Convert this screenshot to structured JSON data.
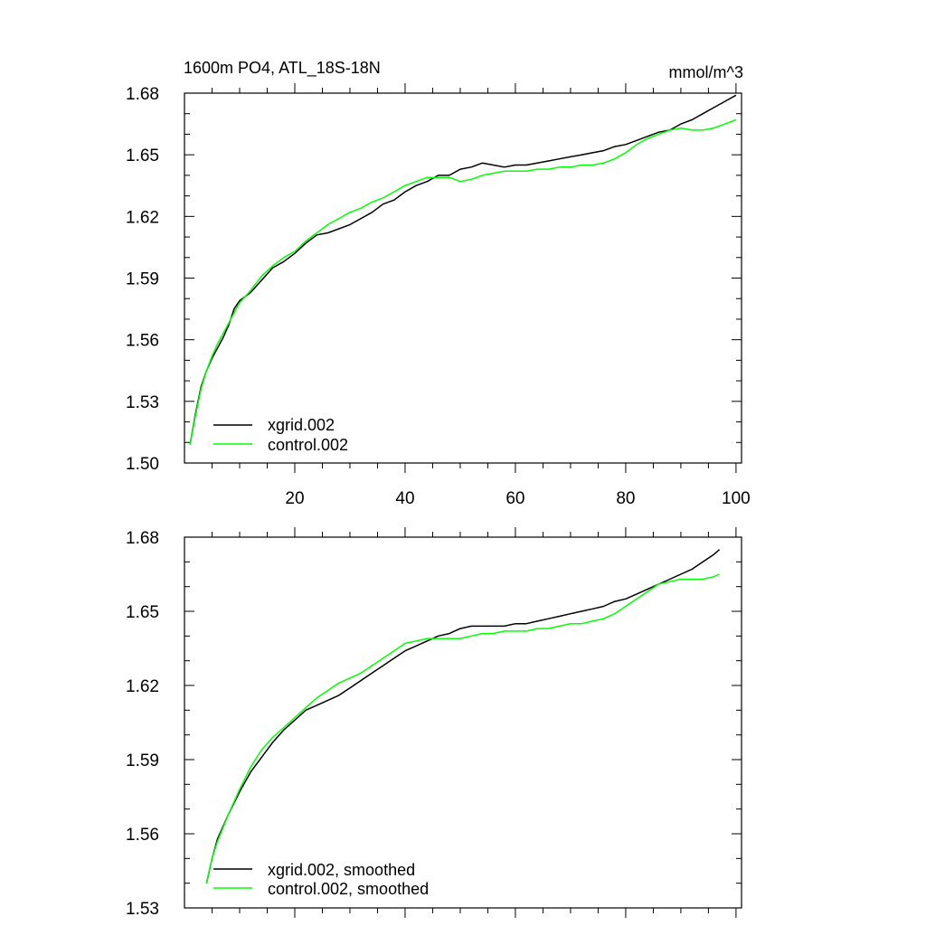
{
  "chart_data": [
    {
      "type": "line",
      "title_left": "1600m PO4, ATL_18S-18N",
      "title_right": "mmol/m^3",
      "xlim": [
        0,
        101
      ],
      "ylim": [
        1.5,
        1.68
      ],
      "x_ticks": [
        20,
        40,
        60,
        80,
        100
      ],
      "x_tick_labels": [
        "20",
        "40",
        "60",
        "80",
        "100"
      ],
      "y_ticks": [
        1.5,
        1.53,
        1.56,
        1.59,
        1.62,
        1.65,
        1.68
      ],
      "y_tick_labels": [
        "1.50",
        "1.53",
        "1.56",
        "1.59",
        "1.62",
        "1.65",
        "1.68"
      ],
      "legend_position": "bottom-left",
      "series": [
        {
          "name": "xgrid.002",
          "color": "#000000",
          "x": [
            1,
            2,
            3,
            4,
            5,
            6,
            7,
            8,
            9,
            10,
            12,
            14,
            16,
            18,
            20,
            22,
            24,
            26,
            28,
            30,
            32,
            34,
            36,
            38,
            40,
            42,
            44,
            46,
            48,
            50,
            52,
            54,
            56,
            58,
            60,
            62,
            64,
            66,
            68,
            70,
            72,
            74,
            76,
            78,
            80,
            82,
            84,
            86,
            88,
            90,
            92,
            94,
            96,
            98,
            100
          ],
          "values": [
            1.509,
            1.524,
            1.537,
            1.545,
            1.551,
            1.556,
            1.561,
            1.567,
            1.575,
            1.579,
            1.583,
            1.589,
            1.595,
            1.598,
            1.602,
            1.607,
            1.611,
            1.612,
            1.614,
            1.616,
            1.619,
            1.622,
            1.626,
            1.628,
            1.632,
            1.635,
            1.637,
            1.64,
            1.64,
            1.643,
            1.644,
            1.646,
            1.645,
            1.644,
            1.645,
            1.645,
            1.646,
            1.647,
            1.648,
            1.649,
            1.65,
            1.651,
            1.652,
            1.654,
            1.655,
            1.657,
            1.659,
            1.661,
            1.662,
            1.665,
            1.667,
            1.67,
            1.673,
            1.676,
            1.679
          ]
        },
        {
          "name": "control.002",
          "color": "#00ff00",
          "x": [
            1,
            2,
            3,
            4,
            5,
            6,
            7,
            8,
            9,
            10,
            12,
            14,
            16,
            18,
            20,
            22,
            24,
            26,
            28,
            30,
            32,
            34,
            36,
            38,
            40,
            42,
            44,
            46,
            48,
            50,
            52,
            54,
            56,
            58,
            60,
            62,
            64,
            66,
            68,
            70,
            72,
            74,
            76,
            78,
            80,
            82,
            84,
            86,
            88,
            90,
            92,
            94,
            96,
            98,
            100
          ],
          "values": [
            1.509,
            1.523,
            1.536,
            1.545,
            1.552,
            1.558,
            1.563,
            1.568,
            1.573,
            1.578,
            1.584,
            1.591,
            1.596,
            1.6,
            1.603,
            1.608,
            1.612,
            1.616,
            1.619,
            1.622,
            1.624,
            1.627,
            1.629,
            1.632,
            1.635,
            1.637,
            1.639,
            1.639,
            1.639,
            1.637,
            1.638,
            1.64,
            1.641,
            1.642,
            1.642,
            1.642,
            1.643,
            1.643,
            1.644,
            1.644,
            1.645,
            1.645,
            1.646,
            1.648,
            1.651,
            1.655,
            1.658,
            1.66,
            1.662,
            1.663,
            1.662,
            1.662,
            1.663,
            1.665,
            1.667
          ]
        }
      ]
    },
    {
      "type": "line",
      "xlim": [
        0,
        101
      ],
      "ylim": [
        1.53,
        1.68
      ],
      "x_ticks": [
        20,
        40,
        60,
        80,
        100
      ],
      "y_ticks": [
        1.53,
        1.56,
        1.59,
        1.62,
        1.65,
        1.68
      ],
      "y_tick_labels": [
        "1.53",
        "1.56",
        "1.59",
        "1.62",
        "1.65",
        "1.68"
      ],
      "legend_position": "bottom-left",
      "series": [
        {
          "name": "xgrid.002, smoothed",
          "color": "#000000",
          "x": [
            4,
            5,
            6,
            8,
            10,
            12,
            14,
            16,
            18,
            20,
            22,
            24,
            26,
            28,
            30,
            32,
            34,
            36,
            38,
            40,
            42,
            44,
            46,
            48,
            50,
            52,
            54,
            56,
            58,
            60,
            62,
            64,
            66,
            68,
            70,
            72,
            74,
            76,
            78,
            80,
            82,
            84,
            86,
            88,
            90,
            92,
            94,
            96,
            97
          ],
          "values": [
            1.54,
            1.55,
            1.558,
            1.568,
            1.577,
            1.585,
            1.591,
            1.597,
            1.602,
            1.606,
            1.61,
            1.612,
            1.614,
            1.616,
            1.619,
            1.622,
            1.625,
            1.628,
            1.631,
            1.634,
            1.636,
            1.638,
            1.64,
            1.641,
            1.643,
            1.644,
            1.644,
            1.644,
            1.644,
            1.645,
            1.645,
            1.646,
            1.647,
            1.648,
            1.649,
            1.65,
            1.651,
            1.652,
            1.654,
            1.655,
            1.657,
            1.659,
            1.661,
            1.663,
            1.665,
            1.667,
            1.67,
            1.673,
            1.675
          ]
        },
        {
          "name": "control.002, smoothed",
          "color": "#00ff00",
          "x": [
            4,
            5,
            6,
            8,
            10,
            12,
            14,
            16,
            18,
            20,
            22,
            24,
            26,
            28,
            30,
            32,
            34,
            36,
            38,
            40,
            42,
            44,
            46,
            48,
            50,
            52,
            54,
            56,
            58,
            60,
            62,
            64,
            66,
            68,
            70,
            72,
            74,
            76,
            78,
            80,
            82,
            84,
            86,
            88,
            90,
            92,
            94,
            96,
            97
          ],
          "values": [
            1.54,
            1.55,
            1.557,
            1.568,
            1.578,
            1.587,
            1.594,
            1.599,
            1.603,
            1.607,
            1.611,
            1.615,
            1.618,
            1.621,
            1.623,
            1.625,
            1.628,
            1.631,
            1.634,
            1.637,
            1.638,
            1.639,
            1.639,
            1.639,
            1.639,
            1.64,
            1.641,
            1.641,
            1.642,
            1.642,
            1.642,
            1.643,
            1.643,
            1.644,
            1.645,
            1.645,
            1.646,
            1.647,
            1.649,
            1.652,
            1.655,
            1.658,
            1.661,
            1.662,
            1.663,
            1.663,
            1.663,
            1.664,
            1.665
          ]
        }
      ]
    }
  ]
}
